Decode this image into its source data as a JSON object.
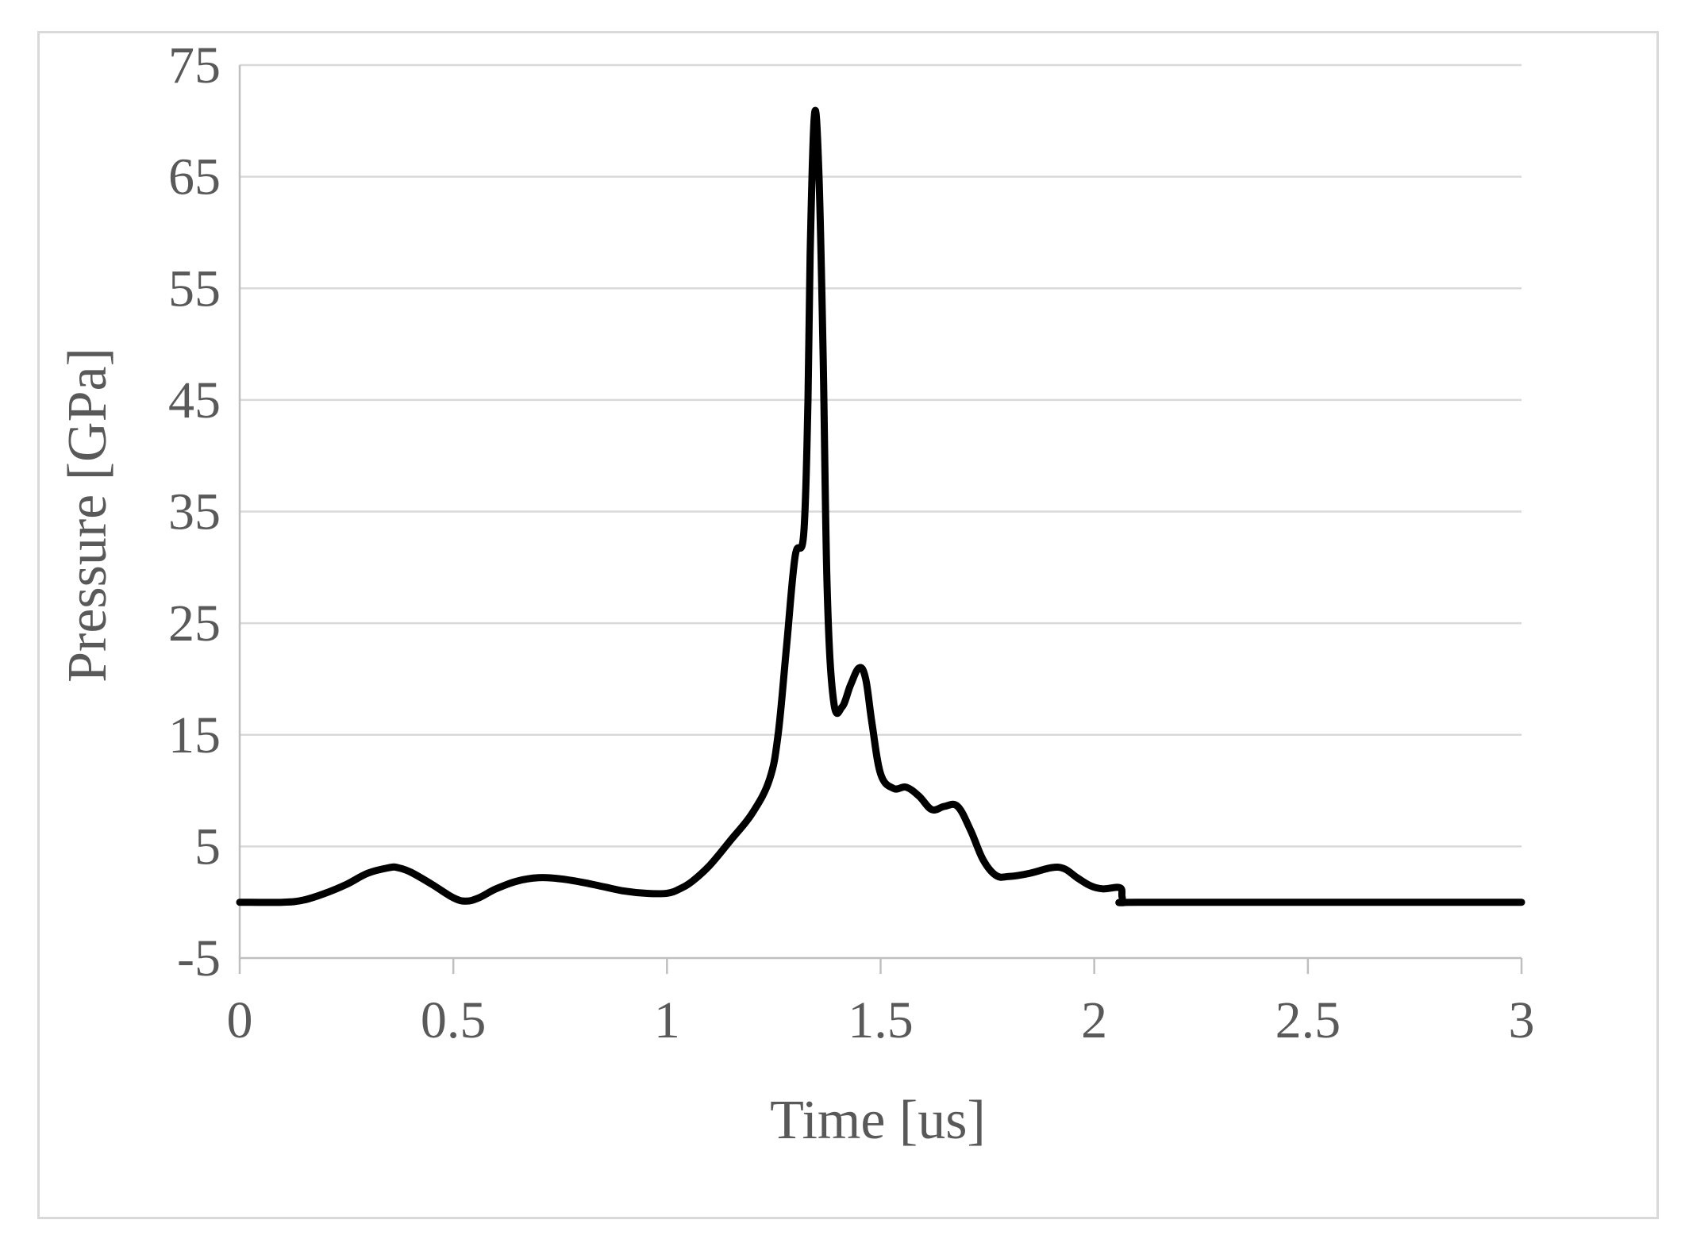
{
  "chart_data": {
    "type": "line",
    "title": "",
    "xlabel": "Time [us]",
    "ylabel": "Pressure [GPa]",
    "xlim": [
      0,
      3
    ],
    "ylim": [
      -5,
      75
    ],
    "x_ticks": [
      0,
      0.5,
      1,
      1.5,
      2,
      2.5,
      3
    ],
    "x_tick_labels": [
      "0",
      "0.5",
      "1",
      "1.5",
      "2",
      "2.5",
      "3"
    ],
    "y_ticks": [
      -5,
      5,
      15,
      25,
      35,
      45,
      55,
      65,
      75
    ],
    "y_tick_labels": [
      "-5",
      "5",
      "15",
      "25",
      "35",
      "45",
      "55",
      "65",
      "75"
    ],
    "grid": "horizontal",
    "legend": "none",
    "colors": {
      "line": "#000000",
      "grid": "#d9d9d9",
      "text": "#595959",
      "frame": "#d9d9d9"
    },
    "series": [
      {
        "x": [
          0,
          0.1,
          0.15,
          0.2,
          0.25,
          0.3,
          0.35,
          0.37,
          0.4,
          0.45,
          0.5,
          0.53,
          0.56,
          0.6,
          0.65,
          0.7,
          0.75,
          0.8,
          0.85,
          0.9,
          0.95,
          1.0,
          1.03,
          1.06,
          1.1,
          1.15,
          1.2,
          1.24,
          1.26,
          1.28,
          1.3,
          1.32,
          1.33,
          1.335,
          1.345,
          1.355,
          1.365,
          1.375,
          1.39,
          1.41,
          1.43,
          1.45,
          1.465,
          1.48,
          1.5,
          1.53,
          1.56,
          1.59,
          1.62,
          1.65,
          1.68,
          1.71,
          1.74,
          1.77,
          1.8,
          1.85,
          1.9,
          1.93,
          1.96,
          1.99,
          2.02,
          2.06,
          2.065,
          2.07,
          2.1,
          2.5,
          3.0
        ],
        "y": [
          0,
          0,
          0.2,
          0.8,
          1.6,
          2.6,
          3.1,
          3.1,
          2.7,
          1.6,
          0.4,
          0.1,
          0.4,
          1.2,
          1.9,
          2.2,
          2.1,
          1.8,
          1.4,
          1.0,
          0.8,
          0.8,
          1.2,
          1.9,
          3.3,
          5.6,
          8.0,
          11.0,
          15.0,
          23.0,
          31.0,
          33.0,
          45.0,
          58.0,
          70.5,
          66.0,
          50.0,
          28.0,
          18.0,
          17.5,
          19.5,
          21.0,
          20.0,
          16.0,
          11.5,
          10.2,
          10.3,
          9.5,
          8.3,
          8.6,
          8.6,
          6.5,
          3.8,
          2.4,
          2.3,
          2.6,
          3.1,
          3.0,
          2.2,
          1.5,
          1.2,
          1.3,
          0.5,
          0,
          0,
          0,
          0
        ]
      }
    ]
  }
}
